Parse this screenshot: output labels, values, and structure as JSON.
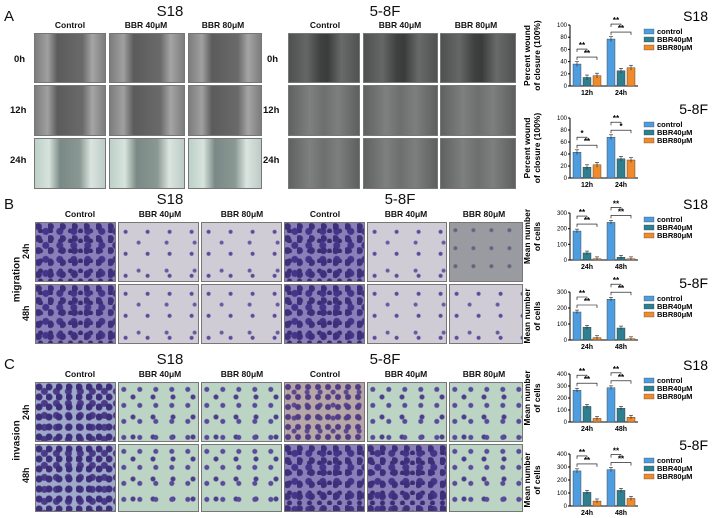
{
  "panels": {
    "A": {
      "letter": "A",
      "left_title": "S18",
      "right_title": "5-8F",
      "cols": [
        "Control",
        "BBR 40μM",
        "BBR 80μM"
      ],
      "rows": [
        "0h",
        "12h",
        "24h"
      ]
    },
    "B": {
      "letter": "B",
      "left_title": "S18",
      "right_title": "5-8F",
      "cols": [
        "Control",
        "BBR 40μM",
        "BBR 80μM"
      ],
      "rows": [
        "24h",
        "48h"
      ],
      "side_label": "migration"
    },
    "C": {
      "letter": "C",
      "left_title": "S18",
      "right_title": "5-8F",
      "cols": [
        "Control",
        "BBR 40μM",
        "BBR 80μM"
      ],
      "rows": [
        "24h",
        "48h"
      ],
      "side_label": "invasion"
    }
  },
  "colors": {
    "control": "#4d9de0",
    "bbr40": "#2e7f90",
    "bbr80": "#f08a2a"
  },
  "chart_data": [
    {
      "id": "A-S18",
      "type": "bar",
      "title": "S18",
      "ylabel": "Percent wound of closure (100%)",
      "categories": [
        "12h",
        "24h"
      ],
      "ylim": [
        0,
        100
      ],
      "yticks": [
        0,
        20,
        40,
        60,
        80,
        100
      ],
      "legend": [
        "control",
        "BBR40μM",
        "BBR80μM"
      ],
      "series": [
        {
          "name": "control",
          "values": [
            36,
            77
          ]
        },
        {
          "name": "BBR40μM",
          "values": [
            14,
            25
          ]
        },
        {
          "name": "BBR80μM",
          "values": [
            17,
            30
          ]
        }
      ],
      "significance": [
        "**",
        "**",
        "**",
        "**"
      ]
    },
    {
      "id": "A-58F",
      "type": "bar",
      "title": "5-8F",
      "ylabel": "Percent wound of closure (100%)",
      "categories": [
        "12h",
        "24h"
      ],
      "ylim": [
        0,
        100
      ],
      "yticks": [
        0,
        20,
        40,
        60,
        80,
        100
      ],
      "legend": [
        "control",
        "BBR40μM",
        "BBR80μM"
      ],
      "series": [
        {
          "name": "control",
          "values": [
            43,
            68
          ]
        },
        {
          "name": "BBR40μM",
          "values": [
            18,
            32
          ]
        },
        {
          "name": "BBR80μM",
          "values": [
            22,
            30
          ]
        }
      ],
      "significance": [
        "**",
        "*",
        "*",
        "**"
      ]
    },
    {
      "id": "B-S18",
      "type": "bar",
      "title": "S18",
      "ylabel": "Mean number of cells",
      "categories": [
        "24h",
        "48h"
      ],
      "ylim": [
        0,
        300
      ],
      "yticks": [
        0,
        100,
        200,
        300
      ],
      "legend": [
        "control",
        "BBR40μM",
        "BBR80μM"
      ],
      "series": [
        {
          "name": "control",
          "values": [
            185,
            240
          ]
        },
        {
          "name": "BBR40μM",
          "values": [
            45,
            18
          ]
        },
        {
          "name": "BBR80μM",
          "values": [
            8,
            8
          ]
        }
      ],
      "significance": [
        "**",
        "**",
        "**",
        "**"
      ]
    },
    {
      "id": "B-58F",
      "type": "bar",
      "title": "5-8F",
      "ylabel": "Mean number of cells",
      "categories": [
        "24h",
        "48h"
      ],
      "ylim": [
        0,
        300
      ],
      "yticks": [
        0,
        100,
        200,
        300
      ],
      "legend": [
        "control",
        "BBR40μM",
        "BBR80μM"
      ],
      "series": [
        {
          "name": "control",
          "values": [
            175,
            255
          ]
        },
        {
          "name": "BBR40μM",
          "values": [
            80,
            75
          ]
        },
        {
          "name": "BBR80μM",
          "values": [
            15,
            8
          ]
        }
      ],
      "significance": [
        "**",
        "**",
        "**",
        "**"
      ]
    },
    {
      "id": "C-S18",
      "type": "bar",
      "title": "S18",
      "ylabel": "Mean number of cells",
      "categories": [
        "24h",
        "48h"
      ],
      "ylim": [
        0,
        400
      ],
      "yticks": [
        0,
        100,
        200,
        300,
        400
      ],
      "legend": [
        "control",
        "BBR40μM",
        "BBR80μM"
      ],
      "series": [
        {
          "name": "control",
          "values": [
            265,
            285
          ]
        },
        {
          "name": "BBR40μM",
          "values": [
            130,
            115
          ]
        },
        {
          "name": "BBR80μM",
          "values": [
            30,
            40
          ]
        }
      ],
      "significance": [
        "**",
        "**",
        "**",
        "**"
      ]
    },
    {
      "id": "C-58F",
      "type": "bar",
      "title": "5-8F",
      "ylabel": "Mean number of cells",
      "categories": [
        "24h",
        "48h"
      ],
      "ylim": [
        0,
        400
      ],
      "yticks": [
        0,
        100,
        200,
        300,
        400
      ],
      "legend": [
        "control",
        "BBR40μM",
        "BBR80μM"
      ],
      "series": [
        {
          "name": "control",
          "values": [
            270,
            280
          ]
        },
        {
          "name": "BBR40μM",
          "values": [
            105,
            120
          ]
        },
        {
          "name": "BBR80μM",
          "values": [
            38,
            58
          ]
        }
      ],
      "significance": [
        "**",
        "**",
        "**",
        "**"
      ]
    }
  ]
}
